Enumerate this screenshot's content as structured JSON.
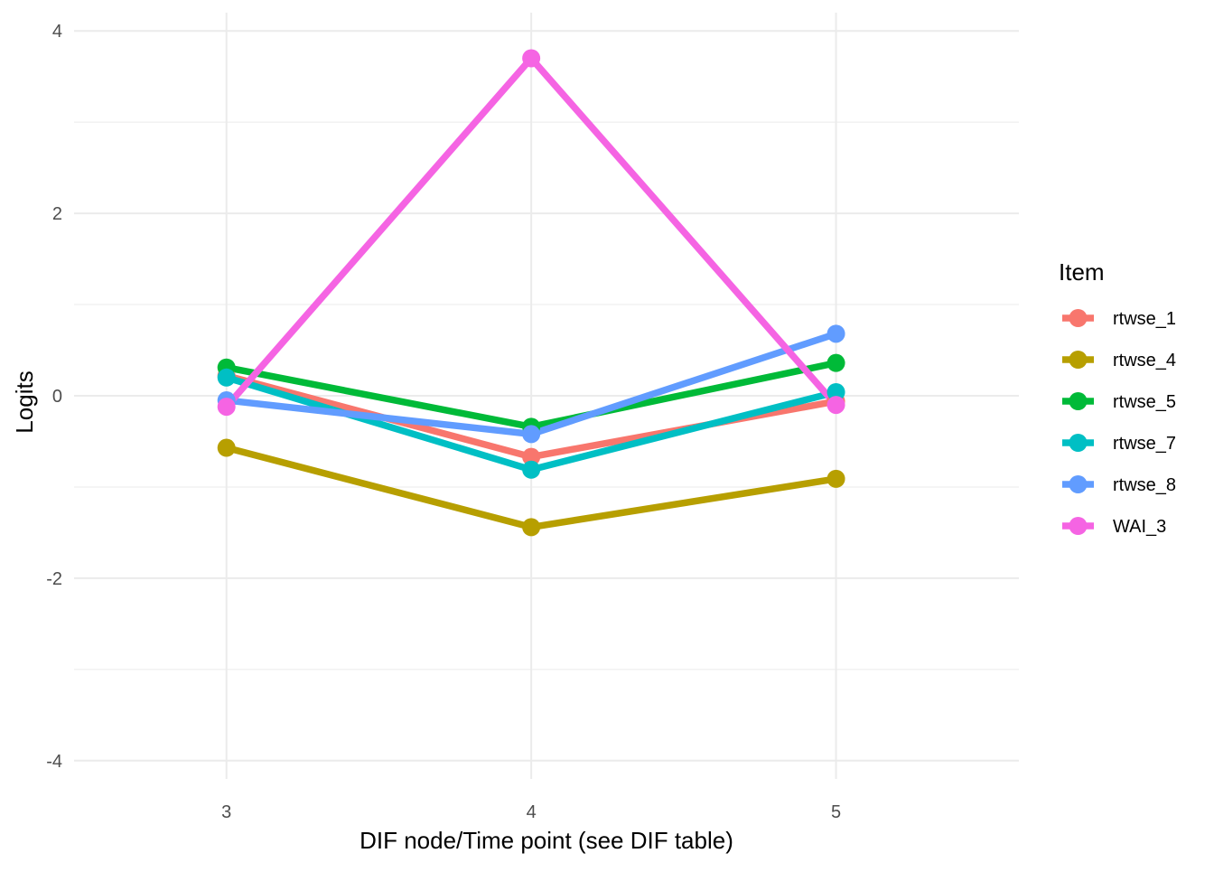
{
  "chart_data": {
    "type": "line",
    "title": "",
    "xlabel": "DIF node/Time point (see DIF table)",
    "ylabel": "Logits",
    "x": [
      3,
      4,
      5
    ],
    "x_tick_labels": [
      "3",
      "4",
      "5"
    ],
    "xlim": [
      2.5,
      5.6
    ],
    "ylim": [
      -4.2,
      4.2
    ],
    "y_ticks": [
      -4,
      -2,
      0,
      2,
      4
    ],
    "y_tick_labels": [
      "-4",
      "-2",
      "0",
      "2",
      "4"
    ],
    "y_minor_ticks": [
      -3,
      -1,
      1,
      3
    ],
    "grid": true,
    "legend": {
      "title": "Item",
      "position": "right"
    },
    "series": [
      {
        "name": "rtwse_1",
        "color": "#F8766D",
        "values": [
          0.22,
          -0.67,
          -0.06
        ]
      },
      {
        "name": "rtwse_4",
        "color": "#B79F00",
        "values": [
          -0.57,
          -1.44,
          -0.91
        ]
      },
      {
        "name": "rtwse_5",
        "color": "#00BA38",
        "values": [
          0.31,
          -0.34,
          0.36
        ]
      },
      {
        "name": "rtwse_7",
        "color": "#00BFC4",
        "values": [
          0.2,
          -0.81,
          0.04
        ]
      },
      {
        "name": "rtwse_8",
        "color": "#619CFF",
        "values": [
          -0.05,
          -0.42,
          0.68
        ]
      },
      {
        "name": "WAI_3",
        "color": "#F564E3",
        "values": [
          -0.12,
          3.7,
          -0.1
        ]
      }
    ]
  }
}
